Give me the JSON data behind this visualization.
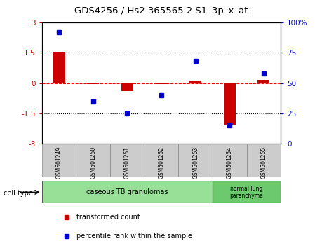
{
  "title": "GDS4256 / Hs2.365565.2.S1_3p_x_at",
  "samples": [
    "GSM501249",
    "GSM501250",
    "GSM501251",
    "GSM501252",
    "GSM501253",
    "GSM501254",
    "GSM501255"
  ],
  "transformed_count": [
    1.55,
    -0.05,
    -0.4,
    -0.05,
    0.1,
    -2.1,
    0.15
  ],
  "percentile_rank_raw": [
    92,
    35,
    25,
    40,
    68,
    15,
    58
  ],
  "red_color": "#CC0000",
  "blue_color": "#0000CC",
  "ylim_left": [
    -3,
    3
  ],
  "ylim_right": [
    0,
    100
  ],
  "bar_width": 0.35,
  "group1_samples": [
    0,
    1,
    2,
    3,
    4
  ],
  "group2_samples": [
    5,
    6
  ],
  "group1_label": "caseous TB granulomas",
  "group2_label": "normal lung\nparenchyma",
  "group1_color": "#98E098",
  "group2_color": "#6DC96D",
  "sample_box_color": "#CCCCCC",
  "legend_red_label": "transformed count",
  "legend_blue_label": "percentile rank within the sample"
}
